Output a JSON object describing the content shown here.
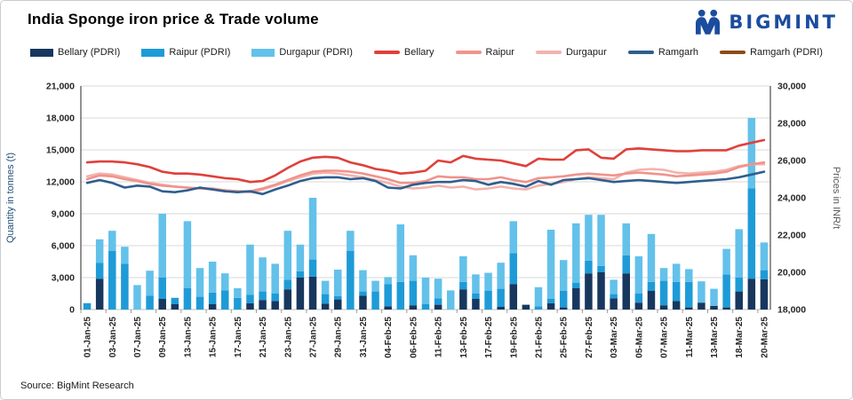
{
  "header": {
    "title": "India Sponge iron price & Trade volume",
    "logo_text": "BIGMINT",
    "logo_color": "#1B4C9E"
  },
  "source_note": "Source: BigMint Research",
  "chart_data": {
    "type": "combo_bar_line",
    "title": "India Sponge iron price & Trade volume",
    "left_axis": {
      "label": "Quantity in tonnes (t)",
      "min": 0,
      "max": 21000,
      "step": 3000,
      "tick_labels": [
        "0",
        "3,000",
        "6,000",
        "9,000",
        "12,000",
        "15,000",
        "18,000",
        "21,000"
      ]
    },
    "right_axis": {
      "label": "Prices in INR/t",
      "min": 18000,
      "max": 30000,
      "step": 2000,
      "tick_labels": [
        "18,000",
        "20,000",
        "22,000",
        "24,000",
        "26,000",
        "28,000",
        "30,000"
      ]
    },
    "grid": "horizontal",
    "legend_position": "top",
    "categories": [
      "01-Jan-25",
      "02-Jan-25",
      "03-Jan-25",
      "06-Jan-25",
      "07-Jan-25",
      "08-Jan-25",
      "09-Jan-25",
      "10-Jan-25",
      "13-Jan-25",
      "14-Jan-25",
      "15-Jan-25",
      "16-Jan-25",
      "17-Jan-25",
      "20-Jan-25",
      "21-Jan-25",
      "22-Jan-25",
      "23-Jan-25",
      "24-Jan-25",
      "27-Jan-25",
      "28-Jan-25",
      "29-Jan-25",
      "30-Jan-25",
      "31-Jan-25",
      "03-Feb-25",
      "04-Feb-25",
      "05-Feb-25",
      "06-Feb-25",
      "07-Feb-25",
      "11-Feb-25",
      "12-Feb-25",
      "13-Feb-25",
      "14-Feb-25",
      "17-Feb-25",
      "18-Feb-25",
      "19-Feb-25",
      "20-Feb-25",
      "21-Feb-25",
      "24-Feb-25",
      "25-Feb-25",
      "26-Feb-25",
      "27-Feb-25",
      "28-Feb-25",
      "03-Mar-25",
      "04-Mar-25",
      "05-Mar-25",
      "06-Mar-25",
      "07-Mar-25",
      "10-Mar-25",
      "11-Mar-25",
      "12-Mar-25",
      "13-Mar-25",
      "17-Mar-25",
      "18-Mar-25",
      "19-Mar-25",
      "20-Mar-25"
    ],
    "x_tick_labels": [
      "01-Jan-25",
      "03-Jan-25",
      "07-Jan-25",
      "09-Jan-25",
      "13-Jan-25",
      "15-Jan-25",
      "17-Jan-25",
      "21-Jan-25",
      "23-Jan-25",
      "27-Jan-25",
      "29-Jan-25",
      "31-Jan-25",
      "04-Feb-25",
      "06-Feb-25",
      "11-Feb-25",
      "13-Feb-25",
      "17-Feb-25",
      "19-Feb-25",
      "21-Feb-25",
      "25-Feb-25",
      "27-Feb-25",
      "03-Mar-25",
      "05-Mar-25",
      "07-Mar-25",
      "11-Mar-25",
      "13-Mar-25",
      "18-Mar-25",
      "20-Mar-25"
    ],
    "x_label_every": 2,
    "bar_series": [
      {
        "name": "Bellary (PDRI)",
        "color": "#17375E",
        "axis": "left",
        "values": [
          0,
          2900,
          0,
          0,
          0,
          0,
          1000,
          500,
          0,
          0,
          500,
          0,
          0,
          600,
          900,
          800,
          1900,
          3000,
          3100,
          550,
          950,
          0,
          1300,
          0,
          300,
          0,
          400,
          0,
          450,
          0,
          1900,
          1000,
          0,
          250,
          2400,
          450,
          0,
          600,
          200,
          2000,
          3400,
          3500,
          1050,
          3400,
          650,
          1750,
          400,
          800,
          200,
          650,
          350,
          200,
          1700,
          2900,
          2850
        ]
      },
      {
        "name": "Raipur (PDRI)",
        "color": "#1E9BD7",
        "axis": "left",
        "values": [
          600,
          1500,
          5500,
          4300,
          0,
          1300,
          2000,
          600,
          2000,
          1200,
          1100,
          1800,
          1100,
          800,
          800,
          700,
          900,
          600,
          1600,
          900,
          300,
          5500,
          400,
          1700,
          2100,
          2600,
          2300,
          500,
          600,
          0,
          700,
          500,
          1750,
          1700,
          2900,
          0,
          300,
          400,
          1550,
          500,
          1200,
          600,
          400,
          1700,
          850,
          850,
          2300,
          1800,
          2400,
          0,
          0,
          3100,
          1300,
          8500,
          850
        ]
      },
      {
        "name": "Durgapur (PDRI)",
        "color": "#63C1EA",
        "axis": "left",
        "values": [
          0,
          2200,
          1900,
          1600,
          2300,
          2350,
          6000,
          0,
          6300,
          2700,
          2900,
          1600,
          900,
          4700,
          3200,
          2800,
          4600,
          2500,
          5800,
          1250,
          2500,
          1900,
          2000,
          1000,
          650,
          5400,
          2400,
          2500,
          1850,
          1800,
          2400,
          1800,
          1700,
          2450,
          3000,
          0,
          1800,
          6500,
          2900,
          5600,
          4300,
          4800,
          1350,
          3000,
          3500,
          4500,
          1200,
          1700,
          1200,
          2000,
          1600,
          2400,
          4550,
          6600,
          2600
        ]
      }
    ],
    "line_series": [
      {
        "name": "Durgapur",
        "color": "#F3B2AC",
        "axis": "right",
        "values": [
          25150,
          25300,
          25250,
          25100,
          24950,
          24800,
          24700,
          24600,
          24550,
          24500,
          24450,
          24400,
          24350,
          24300,
          24450,
          24650,
          24900,
          25100,
          25300,
          25350,
          25300,
          25200,
          25100,
          24950,
          24800,
          24600,
          24500,
          24550,
          24650,
          24550,
          24600,
          24450,
          24500,
          24600,
          24500,
          24450,
          24650,
          24750,
          24850,
          25000,
          25100,
          25050,
          25000,
          25350,
          25500,
          25550,
          25500,
          25350,
          25300,
          25350,
          25400,
          25500,
          25700,
          25800,
          25800
        ]
      },
      {
        "name": "Raipur",
        "color": "#F0938C",
        "axis": "right",
        "values": [
          25000,
          25200,
          25150,
          25000,
          24900,
          24750,
          24650,
          24600,
          24550,
          24500,
          24500,
          24400,
          24350,
          24350,
          24500,
          24700,
          24950,
          25200,
          25400,
          25450,
          25450,
          25400,
          25300,
          25150,
          25000,
          24800,
          24800,
          24900,
          25150,
          25100,
          25100,
          25000,
          25000,
          25100,
          24950,
          24850,
          25050,
          25100,
          25150,
          25250,
          25300,
          25250,
          25200,
          25300,
          25350,
          25300,
          25250,
          25150,
          25200,
          25250,
          25300,
          25400,
          25650,
          25800,
          25900
        ]
      },
      {
        "name": "Ramgarh",
        "color": "#2E5E8E",
        "axis": "right",
        "values": [
          24800,
          24950,
          24800,
          24550,
          24650,
          24600,
          24350,
          24300,
          24400,
          24550,
          24450,
          24350,
          24300,
          24350,
          24200,
          24450,
          24650,
          24900,
          25050,
          25100,
          25100,
          25000,
          25050,
          24900,
          24550,
          24500,
          24700,
          24800,
          24850,
          24850,
          24950,
          24900,
          24700,
          24850,
          24750,
          24600,
          24900,
          24700,
          24950,
          25000,
          25050,
          24950,
          24850,
          24900,
          24950,
          24900,
          24850,
          24800,
          24850,
          24900,
          24950,
          25000,
          25100,
          25250,
          25400
        ]
      },
      {
        "name": "Bellary",
        "color": "#E0403A",
        "axis": "right",
        "values": [
          25900,
          25950,
          25950,
          25900,
          25800,
          25650,
          25400,
          25300,
          25300,
          25250,
          25150,
          25050,
          25000,
          24850,
          24900,
          25200,
          25600,
          25950,
          26150,
          26200,
          26150,
          25900,
          25750,
          25550,
          25450,
          25300,
          25350,
          25450,
          26000,
          25900,
          26250,
          26100,
          26050,
          26000,
          25850,
          25700,
          26100,
          26050,
          26050,
          26550,
          26600,
          26150,
          26100,
          26600,
          26650,
          26600,
          26550,
          26500,
          26500,
          26550,
          26550,
          26550,
          26800,
          26950,
          27100
        ]
      }
    ],
    "legend": [
      {
        "label": "Bellary (PDRI)",
        "swatch": "bar",
        "color": "#17375E"
      },
      {
        "label": "Raipur (PDRI)",
        "swatch": "bar",
        "color": "#1E9BD7"
      },
      {
        "label": "Durgapur (PDRI)",
        "swatch": "bar",
        "color": "#63C1EA"
      },
      {
        "label": "Bellary",
        "swatch": "line",
        "color": "#E0403A"
      },
      {
        "label": "Raipur",
        "swatch": "line",
        "color": "#F0938C"
      },
      {
        "label": "Durgapur",
        "swatch": "line",
        "color": "#F3B2AC"
      },
      {
        "label": "Ramgarh",
        "swatch": "line",
        "color": "#2E5E8E"
      },
      {
        "label": "Ramgarh (PDRI)",
        "swatch": "line",
        "color": "#8C4B17"
      }
    ]
  }
}
